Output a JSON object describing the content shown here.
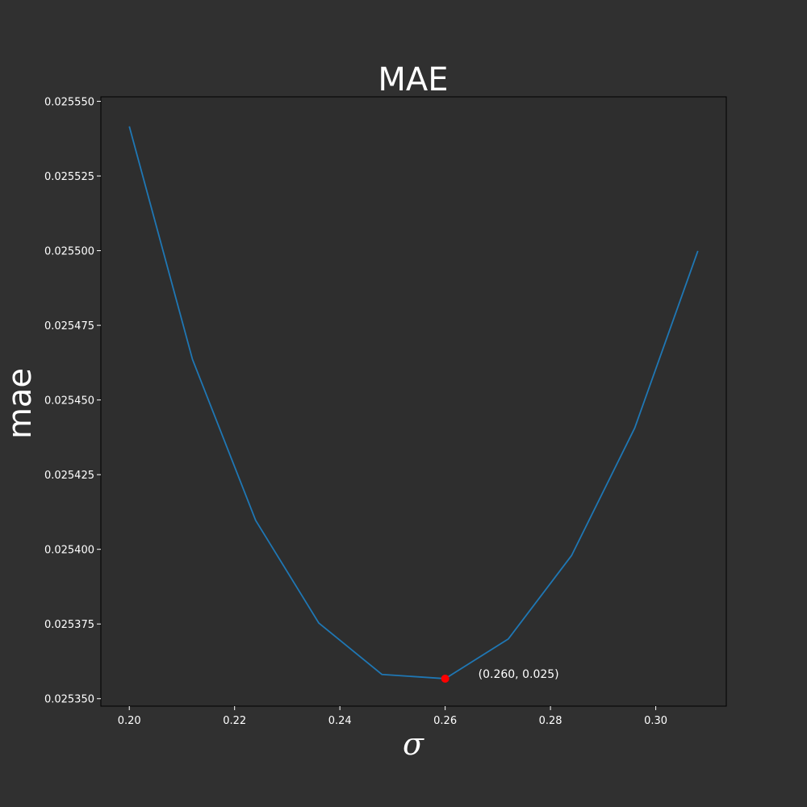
{
  "colors": {
    "background": "#303030",
    "axes_face": "#2e2e2e",
    "line": "#1f77b4",
    "marker": "#ff0000",
    "text": "#ffffff"
  },
  "chart_data": {
    "type": "line",
    "title": "MAE",
    "xlabel": "σ",
    "ylabel": "mae",
    "xlim": [
      0.1946,
      0.3134
    ],
    "ylim": [
      0.0253475,
      0.0255515
    ],
    "x_ticks": [
      "0.20",
      "0.22",
      "0.24",
      "0.26",
      "0.28",
      "0.30"
    ],
    "y_ticks": [
      "0.025350",
      "0.025375",
      "0.025400",
      "0.025425",
      "0.025450",
      "0.025475",
      "0.025500",
      "0.025525",
      "0.025550"
    ],
    "grid": false,
    "series": [
      {
        "x": [
          0.2,
          0.212,
          0.224,
          0.236,
          0.248,
          0.26,
          0.272,
          0.284,
          0.296,
          0.308
        ],
        "y": [
          0.0255416,
          0.0254636,
          0.0254097,
          0.0253753,
          0.0253581,
          0.0253567,
          0.02537,
          0.0253979,
          0.0254406,
          0.0254999
        ]
      }
    ],
    "highlight": {
      "x": 0.26,
      "y": 0.0253567,
      "label": "(0.260, 0.025)"
    }
  }
}
